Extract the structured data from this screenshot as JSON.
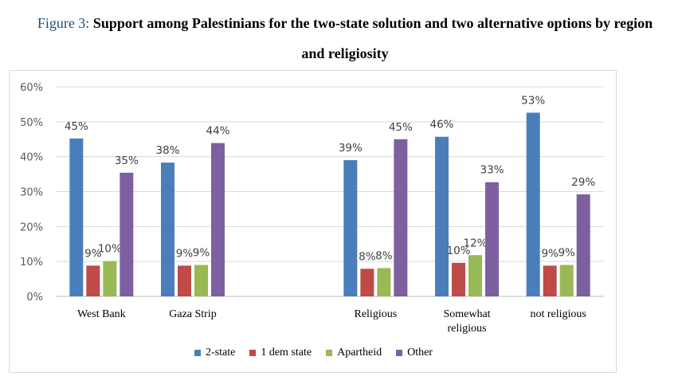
{
  "figure": {
    "prefix": "Figure 3:",
    "title_line1": "Support among Palestinians for the two-state solution and two alternative options by region",
    "title_line2": "and religiosity"
  },
  "chart_data": {
    "type": "bar",
    "categories": [
      "West Bank",
      "Gaza Strip",
      "",
      "Religious",
      "Somewhat religious",
      "not religious"
    ],
    "category_lines": [
      [
        "West Bank"
      ],
      [
        "Gaza Strip"
      ],
      [],
      [
        "Religious"
      ],
      [
        "Somewhat",
        "religious"
      ],
      [
        "not religious"
      ]
    ],
    "series": [
      {
        "name": "2-state",
        "color": "#4a7ebb",
        "values": [
          45,
          38,
          null,
          39,
          46,
          53
        ]
      },
      {
        "name": "1 dem state",
        "color": "#be4b48",
        "values": [
          9,
          9,
          null,
          8,
          10,
          9
        ]
      },
      {
        "name": "Apartheid",
        "color": "#98b954",
        "values": [
          10,
          9,
          null,
          8,
          12,
          9
        ]
      },
      {
        "name": "Other",
        "color": "#7d60a0",
        "values": [
          35,
          44,
          null,
          45,
          33,
          29
        ]
      }
    ],
    "bar_heights": [
      [
        45.2,
        38.3,
        null,
        39.0,
        45.7,
        52.6
      ],
      [
        8.8,
        8.8,
        null,
        7.9,
        9.6,
        8.8
      ],
      [
        10.1,
        9.0,
        null,
        8.1,
        11.8,
        9.0
      ],
      [
        35.4,
        43.9,
        null,
        45.0,
        32.7,
        29.2
      ]
    ],
    "ylim": [
      0,
      60
    ],
    "y_ticks": [
      0,
      10,
      20,
      30,
      40,
      50,
      60
    ],
    "y_tick_labels": [
      "0%",
      "10%",
      "20%",
      "30%",
      "40%",
      "50%",
      "60%"
    ],
    "grid": true,
    "legend_position": "bottom",
    "xlabel": "",
    "ylabel": ""
  }
}
